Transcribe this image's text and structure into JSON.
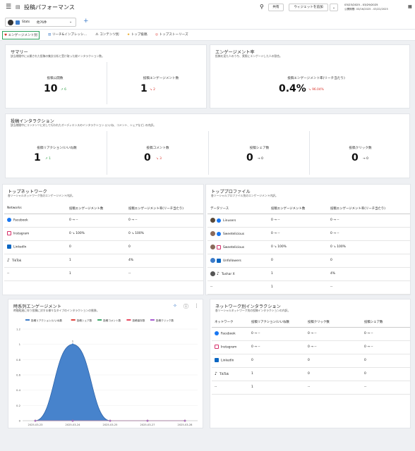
{
  "header": {
    "title": "投稿パフォーマンス",
    "share_label": "共有",
    "add_widget_label": "ウィジェットを追加",
    "date_range": "03/23/2025 - 03/29/2025",
    "publish_date": "公開期間: 03/16/2025 - 03/22/2025"
  },
  "filter": {
    "profile_chip": "Stats",
    "profile_count": "他76件",
    "add": "+"
  },
  "tabs": [
    "エンゲージメント別",
    "リーチ&インプレッシ…",
    "コンテンツ別",
    "トップ投稿",
    "トップストーリーズ"
  ],
  "summary": {
    "title": "サマリー",
    "subtitle": "該当期間中に公開された投稿の集計分析と受け取った総インタラクション数。",
    "posts_label": "投稿公開数",
    "posts_value": "10",
    "posts_delta": "↗ 6",
    "eng_label": "投稿エンゲージメント数",
    "eng_value": "1",
    "eng_delta": "↘ 2"
  },
  "engagement_rate": {
    "title": "エンゲージメント率",
    "subtitle": "投稿を見た人のうち、実際にエンゲージした人の割合。",
    "label": "投稿エンゲージメント率(リーチ当たり)",
    "value": "0.4%",
    "delta": "↘ 96.04%"
  },
  "interactions": {
    "title": "投稿インタラクション",
    "subtitle": "該当期間中にコンテンツに対して行われたオーディエンスのインタラクション (いいね、コメント、シェアなど) の内訳。",
    "metrics": [
      {
        "label": "投稿リアクション/いいね数",
        "value": "1",
        "delta": "↗ 1",
        "dir": "up"
      },
      {
        "label": "投稿コメント数",
        "value": "0",
        "delta": "↘ 3",
        "dir": "down"
      },
      {
        "label": "投稿シェア数",
        "value": "0",
        "delta": "→ 0",
        "dir": "neu"
      },
      {
        "label": "投稿クリック数",
        "value": "0",
        "delta": "→ 0",
        "dir": "neu"
      }
    ]
  },
  "top_network": {
    "title": "トップネットワーク",
    "subtitle": "各ソーシャルネットワーク別のエンゲージメント内訳。",
    "headers": [
      "Networks",
      "投稿エンゲージメント数",
      "投稿エンゲージメント率(リーチ当たり)"
    ],
    "rows": [
      {
        "icon": "facebook-icon",
        "name": "Facebook",
        "eng": "0 → --",
        "rate": "0 → --"
      },
      {
        "icon": "instagram-icon",
        "name": "Instagram",
        "eng": "0 ↘ 100%",
        "rate": "0 ↘ 100%"
      },
      {
        "icon": "linkedin-icon",
        "name": "LinkedIn",
        "eng": "0",
        "rate": "0"
      },
      {
        "icon": "tiktok-icon",
        "name": "TikTok",
        "eng": "1",
        "rate": "4%"
      },
      {
        "icon": "",
        "name": "--",
        "eng": "1",
        "rate": "--"
      }
    ]
  },
  "top_profile": {
    "title": "トッププロファイル",
    "subtitle": "各ソーシャルプロファイル別のエンゲージメント内訳。",
    "headers": [
      "データソース",
      "投稿エンゲージメント数",
      "投稿エンゲージメント率(リーチ当たり)"
    ],
    "rows": [
      {
        "icon": "facebook-icon",
        "name": "Linusers",
        "eng": "0 → --",
        "rate": "0 → --"
      },
      {
        "icon": "facebook-icon",
        "name": "Sweetelicious",
        "eng": "0 → --",
        "rate": "0 → --"
      },
      {
        "icon": "instagram-icon",
        "name": "Sweetelicious",
        "eng": "0 ↘ 100%",
        "rate": "0 ↘ 100%"
      },
      {
        "icon": "linkedin-icon",
        "name": "Unfollowers",
        "eng": "0",
        "rate": "0"
      },
      {
        "icon": "tiktok-icon",
        "name": "Tushar X",
        "eng": "1",
        "rate": "4%"
      },
      {
        "icon": "",
        "name": "--",
        "eng": "1",
        "rate": "--"
      }
    ]
  },
  "timeseries": {
    "title": "時系列エンゲージメント",
    "subtitle": "時間経過に伴う投稿に対する様々なタイプのインタラクションの推移。"
  },
  "chart_data": {
    "type": "area",
    "x": [
      "2025-03-23",
      "2025-03-24",
      "2025-03-25",
      "2025-03-27",
      "2025-03-28"
    ],
    "series": [
      {
        "name": "投稿リアクション/いいね数",
        "values": [
          0,
          1,
          0,
          0,
          0
        ],
        "color": "#3d7cc9"
      },
      {
        "name": "投稿シェア数",
        "values": [
          0,
          0,
          0,
          0,
          0
        ],
        "color": "#e0443d"
      },
      {
        "name": "投稿コメント数",
        "values": [
          0,
          0,
          0,
          0,
          0
        ],
        "color": "#3fa96b"
      },
      {
        "name": "投稿保存数",
        "values": [
          0,
          0,
          0,
          0,
          0
        ],
        "color": "#e8485f"
      },
      {
        "name": "投稿クリック数",
        "values": [
          0,
          0,
          0,
          0,
          0
        ],
        "color": "#a85ad0"
      }
    ],
    "yticks": [
      "0",
      "0.2",
      "0.4",
      "0.6",
      "0.8",
      "1",
      "1.2"
    ],
    "ylim": [
      0,
      1.2
    ],
    "data_label": "1",
    "legend": "top"
  },
  "network_interactions": {
    "title": "ネットワーク別インタラクション",
    "subtitle": "各ソーシャルネットワーク別の投稿インタラクションの内訳。",
    "headers": [
      "ネットワーク",
      "投稿リアクション/いいね数",
      "投稿クリック数",
      "投稿シェア数"
    ],
    "rows": [
      {
        "icon": "facebook-icon",
        "name": "Facebook",
        "a": "0 → --",
        "b": "0 → --",
        "c": "0 → --"
      },
      {
        "icon": "instagram-icon",
        "name": "Instagram",
        "a": "0 → --",
        "b": "0 → --",
        "c": "0 → --"
      },
      {
        "icon": "linkedin-icon",
        "name": "LinkedIn",
        "a": "0",
        "b": "0",
        "c": "0"
      },
      {
        "icon": "tiktok-icon",
        "name": "TikTok",
        "a": "1",
        "b": "0",
        "c": "0"
      },
      {
        "icon": "",
        "name": "--",
        "a": "1",
        "b": "--",
        "c": "--"
      }
    ]
  }
}
